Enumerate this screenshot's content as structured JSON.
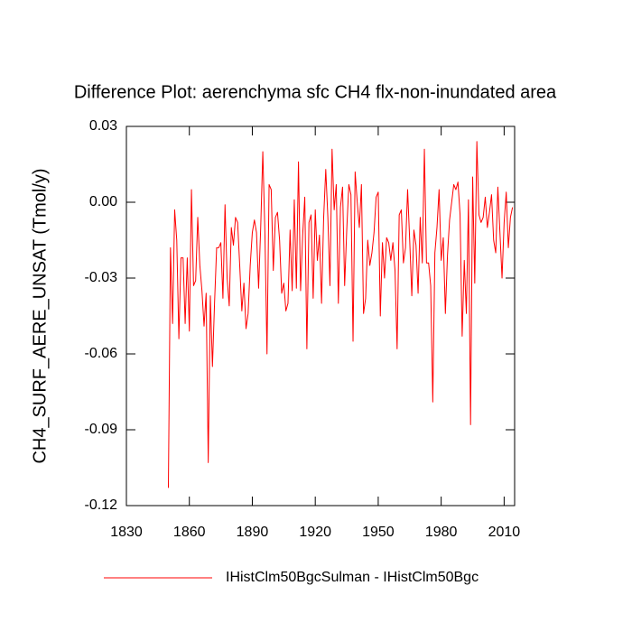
{
  "chart_data": {
    "type": "line",
    "title": "Difference Plot: aerenchyma sfc CH4 flx-non-inundated area",
    "y_label": "CH4_SURF_AERE_UNSAT  (Tmol/y)",
    "x": [
      1850,
      1851,
      1852,
      1853,
      1854,
      1855,
      1856,
      1857,
      1858,
      1859,
      1860,
      1861,
      1862,
      1863,
      1864,
      1865,
      1866,
      1867,
      1868,
      1869,
      1870,
      1871,
      1872,
      1873,
      1874,
      1875,
      1876,
      1877,
      1878,
      1879,
      1880,
      1881,
      1882,
      1883,
      1884,
      1885,
      1886,
      1887,
      1888,
      1889,
      1890,
      1891,
      1892,
      1893,
      1894,
      1895,
      1896,
      1897,
      1898,
      1899,
      1900,
      1901,
      1902,
      1903,
      1904,
      1905,
      1906,
      1907,
      1908,
      1909,
      1910,
      1911,
      1912,
      1913,
      1914,
      1915,
      1916,
      1917,
      1918,
      1919,
      1920,
      1921,
      1922,
      1923,
      1924,
      1925,
      1926,
      1927,
      1928,
      1929,
      1930,
      1931,
      1932,
      1933,
      1934,
      1935,
      1936,
      1937,
      1938,
      1939,
      1940,
      1941,
      1942,
      1943,
      1944,
      1945,
      1946,
      1947,
      1948,
      1949,
      1950,
      1951,
      1952,
      1953,
      1954,
      1955,
      1956,
      1957,
      1958,
      1959,
      1960,
      1961,
      1962,
      1963,
      1964,
      1965,
      1966,
      1967,
      1968,
      1969,
      1970,
      1971,
      1972,
      1973,
      1974,
      1975,
      1976,
      1977,
      1978,
      1979,
      1980,
      1981,
      1982,
      1983,
      1984,
      1985,
      1986,
      1987,
      1988,
      1989,
      1990,
      1991,
      1992,
      1993,
      1994,
      1995,
      1996,
      1997,
      1998,
      1999,
      2000,
      2001,
      2002,
      2003,
      2004,
      2005,
      2006,
      2007,
      2008,
      2009,
      2010,
      2011,
      2012,
      2013,
      2014
    ],
    "series": [
      {
        "name": "IHistClm50BgcSulman - IHistClm50Bgc",
        "color": "#ff0000",
        "values": [
          -0.113,
          -0.018,
          -0.048,
          -0.003,
          -0.015,
          -0.054,
          -0.022,
          -0.022,
          -0.048,
          -0.022,
          -0.051,
          0.005,
          -0.033,
          -0.031,
          -0.006,
          -0.025,
          -0.035,
          -0.049,
          -0.036,
          -0.103,
          -0.037,
          -0.065,
          -0.04,
          -0.018,
          -0.018,
          -0.016,
          -0.038,
          -0.001,
          -0.03,
          -0.041,
          -0.01,
          -0.017,
          -0.006,
          -0.008,
          -0.025,
          -0.043,
          -0.032,
          -0.05,
          -0.044,
          -0.025,
          -0.012,
          -0.007,
          -0.012,
          -0.034,
          -0.01,
          0.02,
          -0.012,
          -0.06,
          0.007,
          0.005,
          -0.027,
          -0.006,
          -0.004,
          -0.015,
          -0.036,
          -0.032,
          -0.043,
          -0.04,
          -0.011,
          -0.035,
          0.001,
          -0.034,
          0.016,
          -0.035,
          -0.013,
          0.002,
          -0.058,
          -0.008,
          -0.005,
          -0.038,
          -0.003,
          -0.023,
          -0.013,
          -0.04,
          -0.006,
          0.013,
          -0.006,
          -0.033,
          0.021,
          -0.003,
          0.007,
          -0.04,
          -0.002,
          0.006,
          -0.033,
          -0.011,
          0.007,
          0.003,
          -0.055,
          0.012,
          0.0,
          -0.01,
          0.007,
          -0.044,
          -0.038,
          -0.015,
          -0.025,
          -0.02,
          -0.012,
          0.002,
          0.004,
          -0.045,
          -0.016,
          -0.03,
          -0.014,
          -0.016,
          -0.023,
          -0.016,
          -0.027,
          -0.058,
          -0.005,
          -0.003,
          -0.024,
          -0.018,
          0.005,
          -0.015,
          -0.037,
          -0.011,
          -0.017,
          -0.036,
          -0.006,
          -0.024,
          0.021,
          -0.024,
          -0.024,
          -0.033,
          -0.079,
          -0.02,
          -0.01,
          0.005,
          -0.023,
          -0.014,
          -0.044,
          -0.021,
          -0.007,
          0.0,
          0.007,
          0.005,
          0.008,
          -0.005,
          -0.053,
          -0.023,
          -0.044,
          0.001,
          -0.088,
          0.01,
          -0.032,
          0.024,
          -0.005,
          -0.008,
          -0.006,
          0.002,
          -0.01,
          -0.004,
          0.003,
          -0.015,
          -0.02,
          0.006,
          -0.012,
          -0.03,
          -0.008,
          0.004,
          -0.018,
          -0.006,
          -0.002
        ]
      }
    ],
    "xlim": [
      1830,
      2015
    ],
    "xticks": [
      1830,
      1860,
      1890,
      1920,
      1950,
      1980,
      2010
    ],
    "ylim": [
      -0.12,
      0.03
    ],
    "yticks": [
      0.03,
      {
        "value": 0,
        "label": "0.00"
      },
      -0.03,
      -0.06,
      -0.09,
      -0.12
    ],
    "grid": false,
    "legend": "bottom"
  }
}
